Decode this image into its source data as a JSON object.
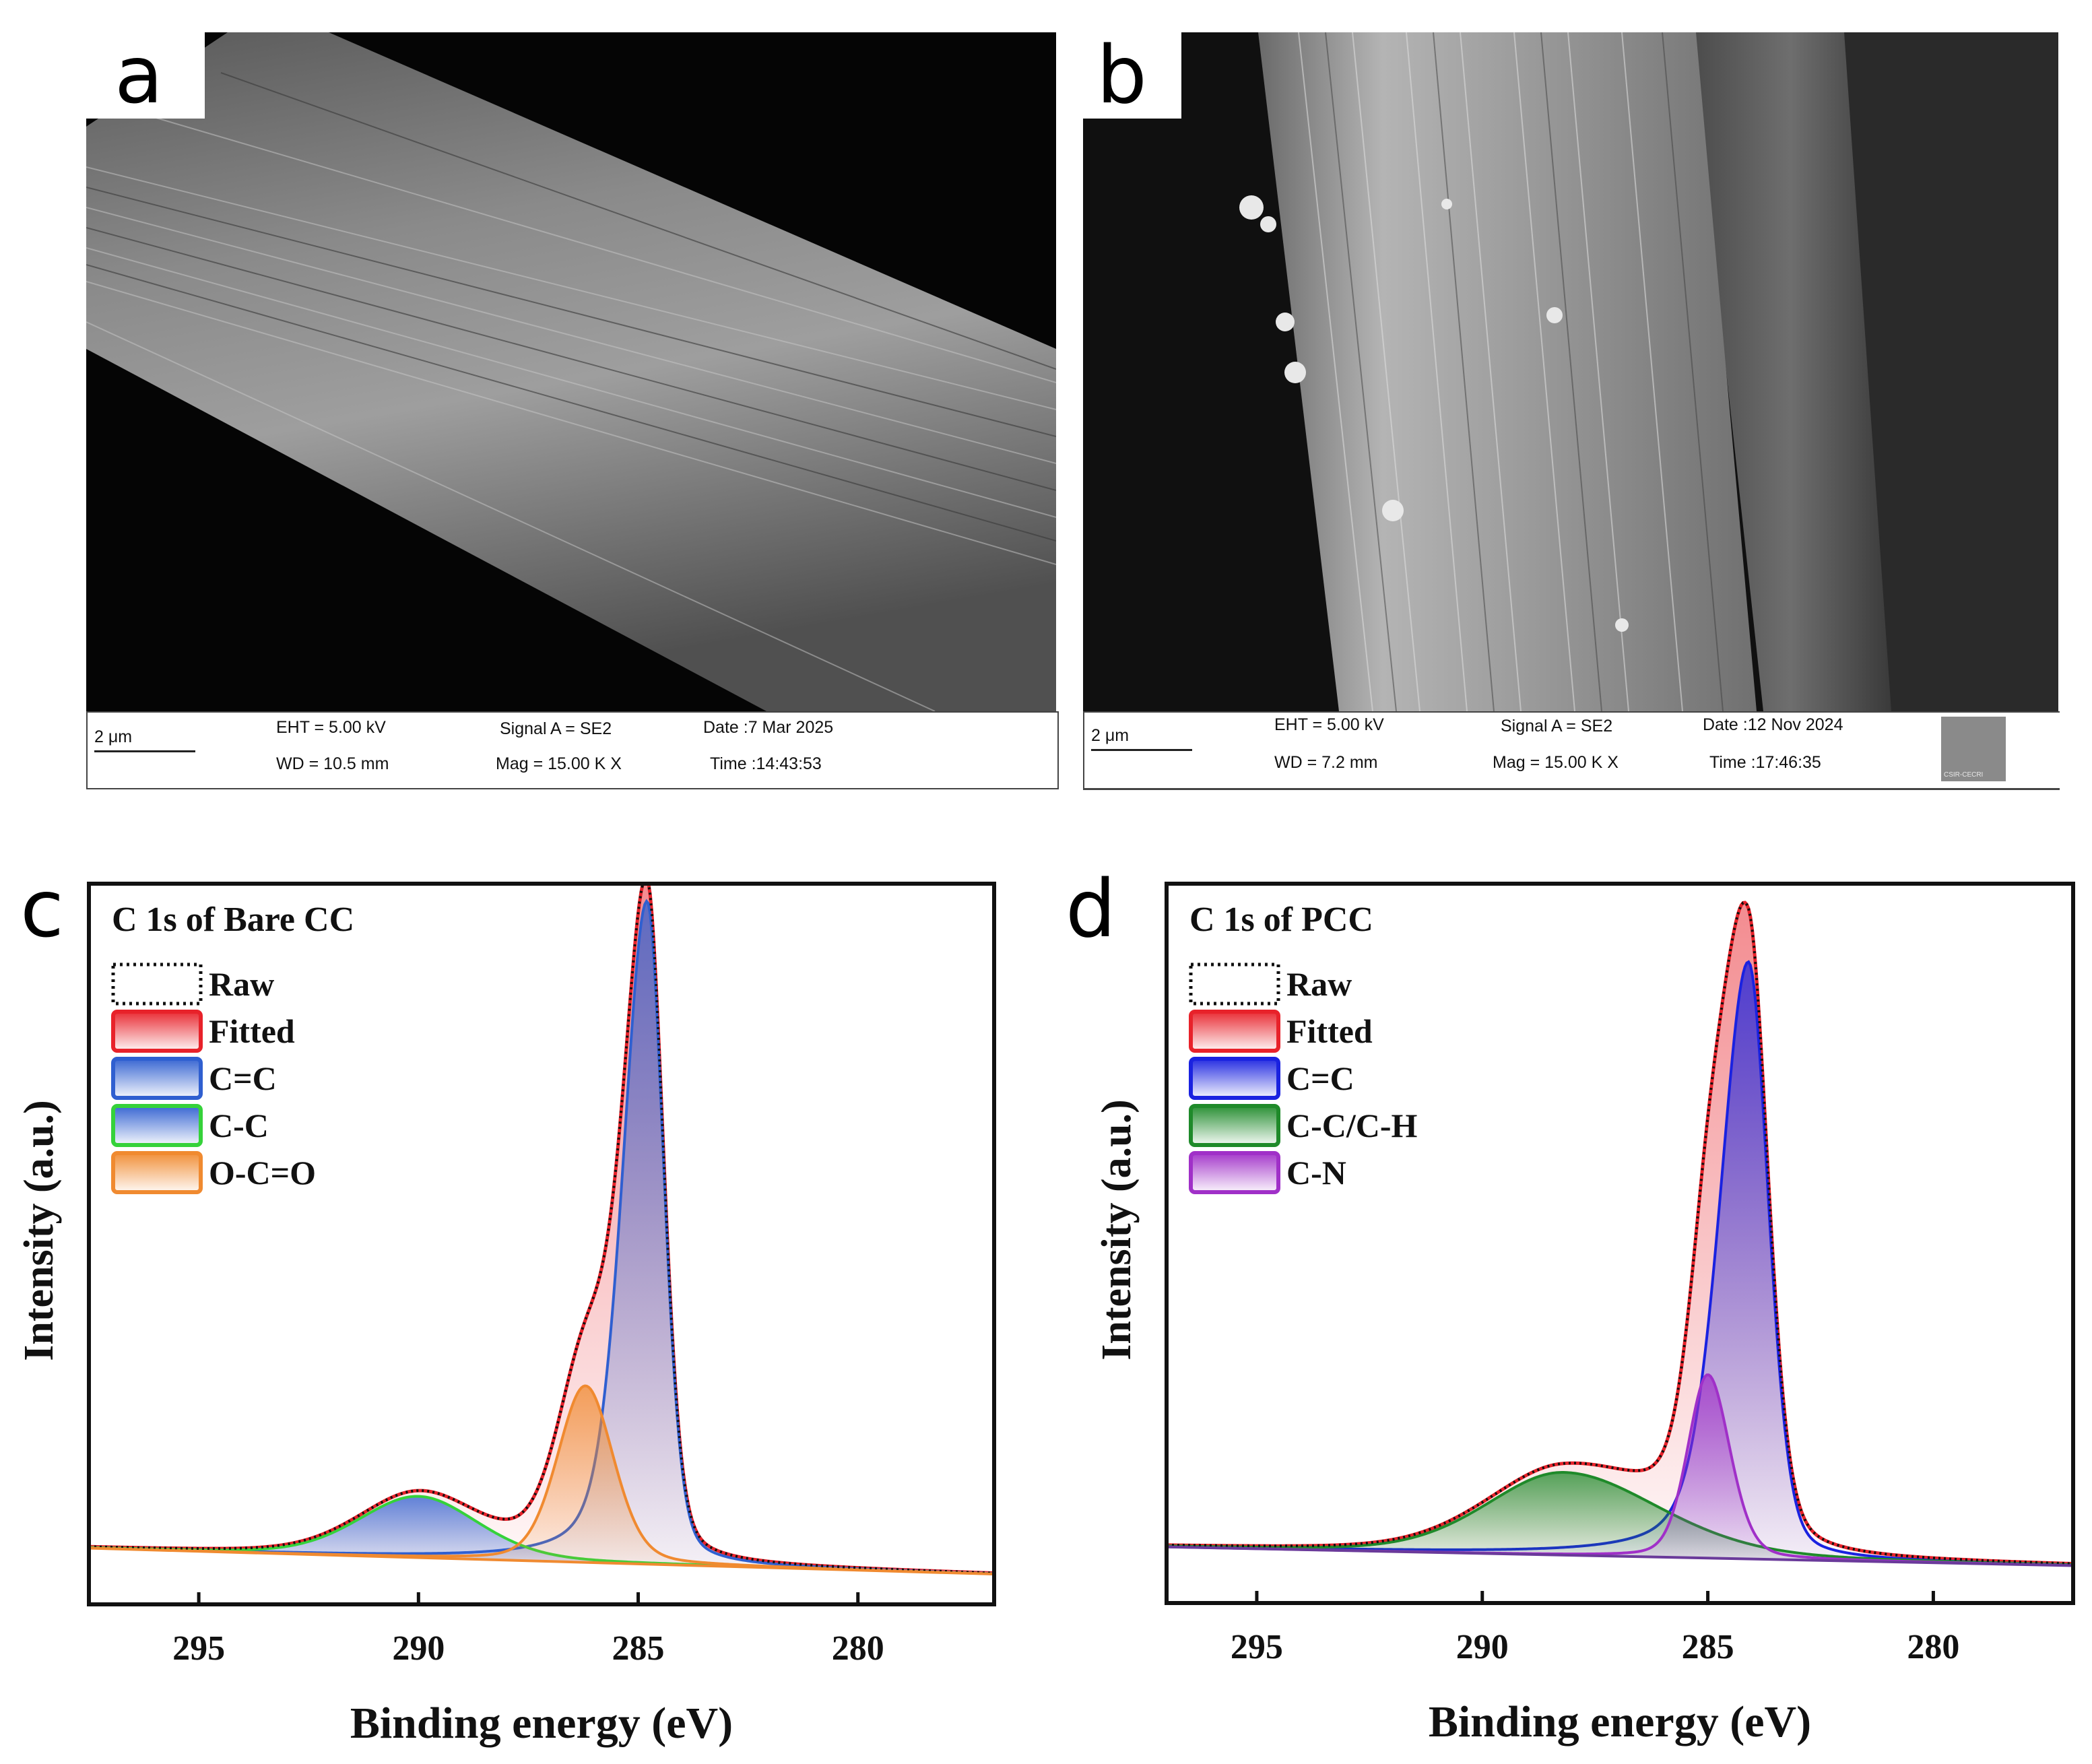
{
  "panels": [
    {
      "label": "a",
      "sem": {
        "scale_bar": "2 μm",
        "eht": "EHT =  5.00 kV",
        "wd": "WD = 10.5 mm",
        "signal": "Signal A = SE2",
        "mag": "Mag =   15.00 K X",
        "date": "Date :7 Mar 2025",
        "time": "Time :14:43:53"
      }
    },
    {
      "label": "b",
      "sem": {
        "scale_bar": "2 μm",
        "eht": "EHT =  5.00 kV",
        "wd": "WD = 7.2 mm",
        "signal": "Signal A = SE2",
        "mag": "Mag =   15.00 K X",
        "date": "Date :12 Nov 2024",
        "time": "Time :17:46:35",
        "logo_text": "CSIR-CECRI"
      }
    },
    {
      "label": "c"
    },
    {
      "label": "d"
    }
  ],
  "colors": {
    "raw": "#111111",
    "fitted": "#e8222a",
    "cc_double": "#2f5fd0",
    "cc_single_c": "#35d23a",
    "occo": "#f08a30",
    "cc_single_d": "#1f8a2a",
    "cn": "#a030c8",
    "cc_double_d": "#1a22e0",
    "baseline_d": "#6a3a9a"
  },
  "chart_data": [
    {
      "type": "line",
      "panel": "c",
      "title": "C 1s of Bare CC",
      "xlabel": "Binding energy (eV)",
      "ylabel": "Intensity (a.u.)",
      "xlim": [
        297.5,
        276.9
      ],
      "x_reversed": true,
      "xticks": [
        295,
        290,
        285,
        280
      ],
      "ylim": [
        0,
        1.0
      ],
      "grid": false,
      "legend_position": "top-left",
      "baseline": {
        "x": [
          297.5,
          276.9
        ],
        "y": [
          0.078,
          0.042
        ]
      },
      "series": [
        {
          "name": "Raw",
          "style": "dotted",
          "color_key": "raw"
        },
        {
          "name": "Fitted",
          "style": "filled",
          "color_key": "fitted"
        },
        {
          "name": "C=C",
          "center": 284.8,
          "height": 0.92,
          "fwhm_low": 0.9,
          "fwhm_high": 1.3,
          "tail_high": 1.6,
          "color_key": "cc_double"
        },
        {
          "name": "C-C",
          "center": 290.0,
          "height": 0.085,
          "fwhm_low": 3.2,
          "fwhm_high": 3.2,
          "color_key": "cc_single_c"
        },
        {
          "name": "O-C=O",
          "center": 286.2,
          "height": 0.245,
          "fwhm_low": 1.5,
          "fwhm_high": 1.5,
          "color_key": "occo"
        }
      ]
    },
    {
      "type": "line",
      "panel": "d",
      "title": "C 1s of PCC",
      "xlabel": "Binding energy (eV)",
      "ylabel": "Intensity (a.u.)",
      "xlim": [
        297.0,
        276.9
      ],
      "x_reversed": true,
      "xticks": [
        295,
        290,
        285,
        280
      ],
      "ylim": [
        0,
        1.0
      ],
      "grid": false,
      "legend_position": "top-left",
      "baseline": {
        "x": [
          297.0,
          276.9
        ],
        "y": [
          0.078,
          0.052
        ]
      },
      "series": [
        {
          "name": "Raw",
          "style": "dotted",
          "color_key": "raw"
        },
        {
          "name": "Fitted",
          "style": "filled",
          "color_key": "fitted"
        },
        {
          "name": "C=C",
          "center": 284.1,
          "height": 0.83,
          "fwhm_low": 1.05,
          "fwhm_high": 1.5,
          "tail_high": 1.9,
          "color_key": "cc_double_d"
        },
        {
          "name": "C-C/C-H",
          "center": 288.2,
          "height": 0.115,
          "fwhm_low": 5.0,
          "fwhm_high": 4.0,
          "color_key": "cc_single_d"
        },
        {
          "name": "C-N",
          "center": 285.0,
          "height": 0.255,
          "fwhm_low": 1.15,
          "fwhm_high": 1.05,
          "color_key": "cn"
        }
      ]
    }
  ]
}
